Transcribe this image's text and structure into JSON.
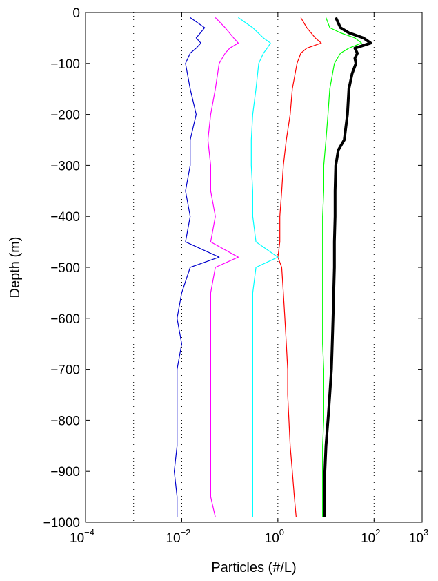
{
  "chart_data": {
    "type": "line",
    "title": "",
    "xlabel": "Particles (#/L)",
    "ylabel": "Depth (m)",
    "xscale": "log",
    "xlim": [
      0.0001,
      1000
    ],
    "ylim": [
      -1000,
      0
    ],
    "x_ticks": [
      {
        "base": "10",
        "exp": "−4",
        "value": 0.0001
      },
      {
        "base": "10",
        "exp": "−2",
        "value": 0.01
      },
      {
        "base": "10",
        "exp": "0",
        "value": 1
      },
      {
        "base": "10",
        "exp": "2",
        "value": 100
      },
      {
        "base": "10",
        "exp": "3",
        "value": 1000
      }
    ],
    "y_ticks": [
      "0",
      "−100",
      "−200",
      "−300",
      "−400",
      "−500",
      "−600",
      "−700",
      "−800",
      "−900",
      "−1000"
    ],
    "y_tick_values": [
      0,
      -100,
      -200,
      -300,
      -400,
      -500,
      -600,
      -700,
      -800,
      -900,
      -1000
    ],
    "vertical_dotted_grid_at": [
      0.001,
      0.01,
      1,
      100
    ],
    "series": [
      {
        "color": "#000000",
        "width": 4,
        "depth": [
          -10,
          -30,
          -40,
          -50,
          -60,
          -70,
          -80,
          -90,
          -100,
          -120,
          -150,
          -200,
          -250,
          -270,
          -300,
          -350,
          -400,
          -450,
          -500,
          -550,
          -600,
          -650,
          -700,
          -750,
          -800,
          -850,
          -900,
          -950,
          -990
        ],
        "values": [
          16,
          20,
          30,
          60,
          85,
          40,
          45,
          40,
          42,
          35,
          30,
          28,
          24,
          18,
          16,
          15.5,
          15.5,
          15,
          15,
          14.5,
          14,
          13.5,
          13,
          12,
          11,
          10,
          9.5,
          9.5,
          9.5
        ]
      },
      {
        "color": "#00ff00",
        "width": 1.2,
        "depth": [
          -10,
          -30,
          -40,
          -50,
          -60,
          -70,
          -80,
          -100,
          -150,
          -200,
          -250,
          -300,
          -350,
          -400,
          -450,
          -500,
          -550,
          -600,
          -650,
          -700,
          -750,
          -800,
          -850,
          -900,
          -950,
          -990
        ],
        "values": [
          10,
          12,
          20,
          40,
          55,
          30,
          20,
          15,
          12,
          11,
          10,
          9,
          9,
          8.5,
          8.5,
          8.5,
          8.5,
          8.5,
          8.5,
          9,
          9,
          9,
          8.5,
          8.5,
          8.5,
          8.5
        ]
      },
      {
        "color": "#ff0000",
        "width": 1.2,
        "depth": [
          -10,
          -30,
          -50,
          -60,
          -70,
          -80,
          -100,
          -150,
          -200,
          -250,
          -300,
          -350,
          -400,
          -450,
          -480,
          -500,
          -550,
          -600,
          -650,
          -700,
          -750,
          -800,
          -850,
          -900,
          -950,
          -990
        ],
        "values": [
          3,
          4,
          6,
          8,
          4,
          3,
          2.5,
          2,
          1.8,
          1.5,
          1.3,
          1.2,
          1.1,
          1.1,
          1.0,
          1.2,
          1.3,
          1.4,
          1.5,
          1.6,
          1.6,
          1.7,
          1.8,
          2,
          2.2,
          2.4
        ]
      },
      {
        "color": "#00ffff",
        "width": 1.2,
        "depth": [
          -10,
          -30,
          -50,
          -60,
          -70,
          -80,
          -100,
          -150,
          -200,
          -250,
          -300,
          -350,
          -400,
          -450,
          -480,
          -500,
          -550,
          -600,
          -650,
          -700,
          -750,
          -800,
          -850,
          -900,
          -950,
          -990
        ],
        "values": [
          0.15,
          0.3,
          0.5,
          0.7,
          0.6,
          0.5,
          0.4,
          0.35,
          0.3,
          0.28,
          0.28,
          0.3,
          0.3,
          0.35,
          1.0,
          0.35,
          0.3,
          0.3,
          0.3,
          0.3,
          0.3,
          0.3,
          0.3,
          0.3,
          0.3,
          0.3
        ]
      },
      {
        "color": "#ff00ff",
        "width": 1.2,
        "depth": [
          -10,
          -30,
          -50,
          -60,
          -70,
          -80,
          -100,
          -150,
          -200,
          -250,
          -300,
          -350,
          -400,
          -450,
          -480,
          -500,
          -550,
          -600,
          -650,
          -700,
          -750,
          -800,
          -850,
          -900,
          -950,
          -990
        ],
        "values": [
          0.05,
          0.08,
          0.12,
          0.15,
          0.1,
          0.08,
          0.06,
          0.05,
          0.04,
          0.035,
          0.04,
          0.04,
          0.05,
          0.04,
          0.15,
          0.05,
          0.04,
          0.04,
          0.04,
          0.04,
          0.04,
          0.04,
          0.04,
          0.04,
          0.04,
          0.05
        ]
      },
      {
        "color": "#0000cc",
        "width": 1.2,
        "depth": [
          -10,
          -30,
          -50,
          -60,
          -70,
          -80,
          -100,
          -150,
          -200,
          -250,
          -300,
          -350,
          -400,
          -450,
          -480,
          -500,
          -550,
          -600,
          -650,
          -700,
          -750,
          -800,
          -850,
          -900,
          -950,
          -990
        ],
        "values": [
          0.015,
          0.03,
          0.02,
          0.025,
          0.02,
          0.015,
          0.012,
          0.015,
          0.02,
          0.015,
          0.015,
          0.012,
          0.015,
          0.012,
          0.06,
          0.015,
          0.01,
          0.008,
          0.01,
          0.008,
          0.008,
          0.008,
          0.008,
          0.007,
          0.008,
          0.008
        ]
      }
    ]
  }
}
